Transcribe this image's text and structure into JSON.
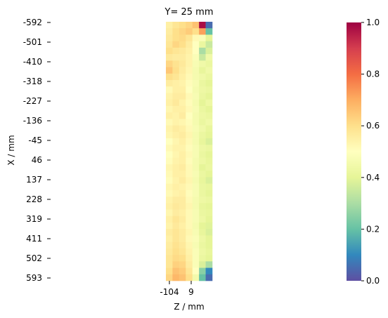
{
  "chart_data": {
    "type": "heatmap",
    "title": "Y= 25 mm",
    "xlabel": "Z / mm",
    "ylabel": "X / mm",
    "x_tick_labels": [
      "-104",
      "9"
    ],
    "y_tick_labels": [
      "-592",
      "-501",
      "-410",
      "-318",
      "-227",
      "-136",
      "-45",
      "46",
      "137",
      "228",
      "319",
      "411",
      "502",
      "593"
    ],
    "colorbar": {
      "min": 0.0,
      "max": 1.0,
      "tick_labels": [
        "0.0",
        "0.2",
        "0.4",
        "0.6",
        "0.8",
        "1.0"
      ],
      "colormap": "Spectral_r",
      "color_stops": [
        "#5e4fa2",
        "#3288bd",
        "#66c2a5",
        "#abdda4",
        "#e6f598",
        "#ffffbf",
        "#fee08b",
        "#fdae61",
        "#f46d43",
        "#d53e4f",
        "#9e0142"
      ]
    },
    "grid": false,
    "n_rows": 40,
    "n_cols": 7,
    "values": [
      [
        0.55,
        0.58,
        0.6,
        0.62,
        0.66,
        0.98,
        0.05
      ],
      [
        0.56,
        0.6,
        0.62,
        0.64,
        0.6,
        0.72,
        0.2
      ],
      [
        0.57,
        0.6,
        0.61,
        0.58,
        0.52,
        0.48,
        0.4
      ],
      [
        0.58,
        0.62,
        0.6,
        0.56,
        0.5,
        0.42,
        0.35
      ],
      [
        0.6,
        0.58,
        0.57,
        0.55,
        0.5,
        0.3,
        0.38
      ],
      [
        0.57,
        0.56,
        0.56,
        0.54,
        0.48,
        0.35,
        0.44
      ],
      [
        0.62,
        0.59,
        0.57,
        0.54,
        0.47,
        0.44,
        0.42
      ],
      [
        0.65,
        0.6,
        0.56,
        0.53,
        0.46,
        0.41,
        0.44
      ],
      [
        0.6,
        0.58,
        0.55,
        0.52,
        0.46,
        0.44,
        0.42
      ],
      [
        0.56,
        0.55,
        0.54,
        0.51,
        0.47,
        0.42,
        0.4
      ],
      [
        0.52,
        0.55,
        0.55,
        0.5,
        0.46,
        0.43,
        0.42
      ],
      [
        0.54,
        0.56,
        0.56,
        0.52,
        0.47,
        0.42,
        0.4
      ],
      [
        0.55,
        0.57,
        0.54,
        0.51,
        0.46,
        0.4,
        0.43
      ],
      [
        0.53,
        0.55,
        0.55,
        0.52,
        0.47,
        0.42,
        0.4
      ],
      [
        0.55,
        0.54,
        0.56,
        0.5,
        0.46,
        0.43,
        0.42
      ],
      [
        0.52,
        0.54,
        0.53,
        0.51,
        0.46,
        0.42,
        0.44
      ],
      [
        0.54,
        0.56,
        0.55,
        0.52,
        0.47,
        0.44,
        0.41
      ],
      [
        0.53,
        0.55,
        0.56,
        0.53,
        0.46,
        0.42,
        0.4
      ],
      [
        0.5,
        0.53,
        0.55,
        0.52,
        0.46,
        0.41,
        0.38
      ],
      [
        0.52,
        0.54,
        0.54,
        0.51,
        0.47,
        0.43,
        0.42
      ],
      [
        0.5,
        0.53,
        0.55,
        0.52,
        0.47,
        0.42,
        0.4
      ],
      [
        0.51,
        0.54,
        0.55,
        0.51,
        0.46,
        0.43,
        0.41
      ],
      [
        0.53,
        0.55,
        0.56,
        0.52,
        0.46,
        0.4,
        0.42
      ],
      [
        0.52,
        0.55,
        0.55,
        0.52,
        0.47,
        0.42,
        0.4
      ],
      [
        0.51,
        0.54,
        0.56,
        0.53,
        0.46,
        0.41,
        0.38
      ],
      [
        0.53,
        0.55,
        0.54,
        0.52,
        0.47,
        0.42,
        0.41
      ],
      [
        0.52,
        0.54,
        0.55,
        0.51,
        0.47,
        0.42,
        0.4
      ],
      [
        0.54,
        0.56,
        0.56,
        0.52,
        0.46,
        0.43,
        0.42
      ],
      [
        0.55,
        0.57,
        0.56,
        0.53,
        0.46,
        0.41,
        0.4
      ],
      [
        0.53,
        0.56,
        0.55,
        0.52,
        0.47,
        0.42,
        0.41
      ],
      [
        0.55,
        0.58,
        0.56,
        0.52,
        0.47,
        0.43,
        0.4
      ],
      [
        0.54,
        0.57,
        0.55,
        0.52,
        0.46,
        0.4,
        0.39
      ],
      [
        0.56,
        0.58,
        0.56,
        0.53,
        0.47,
        0.41,
        0.38
      ],
      [
        0.55,
        0.58,
        0.56,
        0.52,
        0.48,
        0.43,
        0.4
      ],
      [
        0.56,
        0.59,
        0.57,
        0.53,
        0.47,
        0.42,
        0.4
      ],
      [
        0.57,
        0.6,
        0.58,
        0.54,
        0.48,
        0.43,
        0.41
      ],
      [
        0.58,
        0.61,
        0.6,
        0.55,
        0.48,
        0.42,
        0.4
      ],
      [
        0.58,
        0.63,
        0.62,
        0.56,
        0.48,
        0.38,
        0.3
      ],
      [
        0.6,
        0.66,
        0.64,
        0.58,
        0.5,
        0.25,
        0.1
      ],
      [
        0.62,
        0.68,
        0.66,
        0.6,
        0.45,
        0.2,
        0.05
      ]
    ]
  }
}
